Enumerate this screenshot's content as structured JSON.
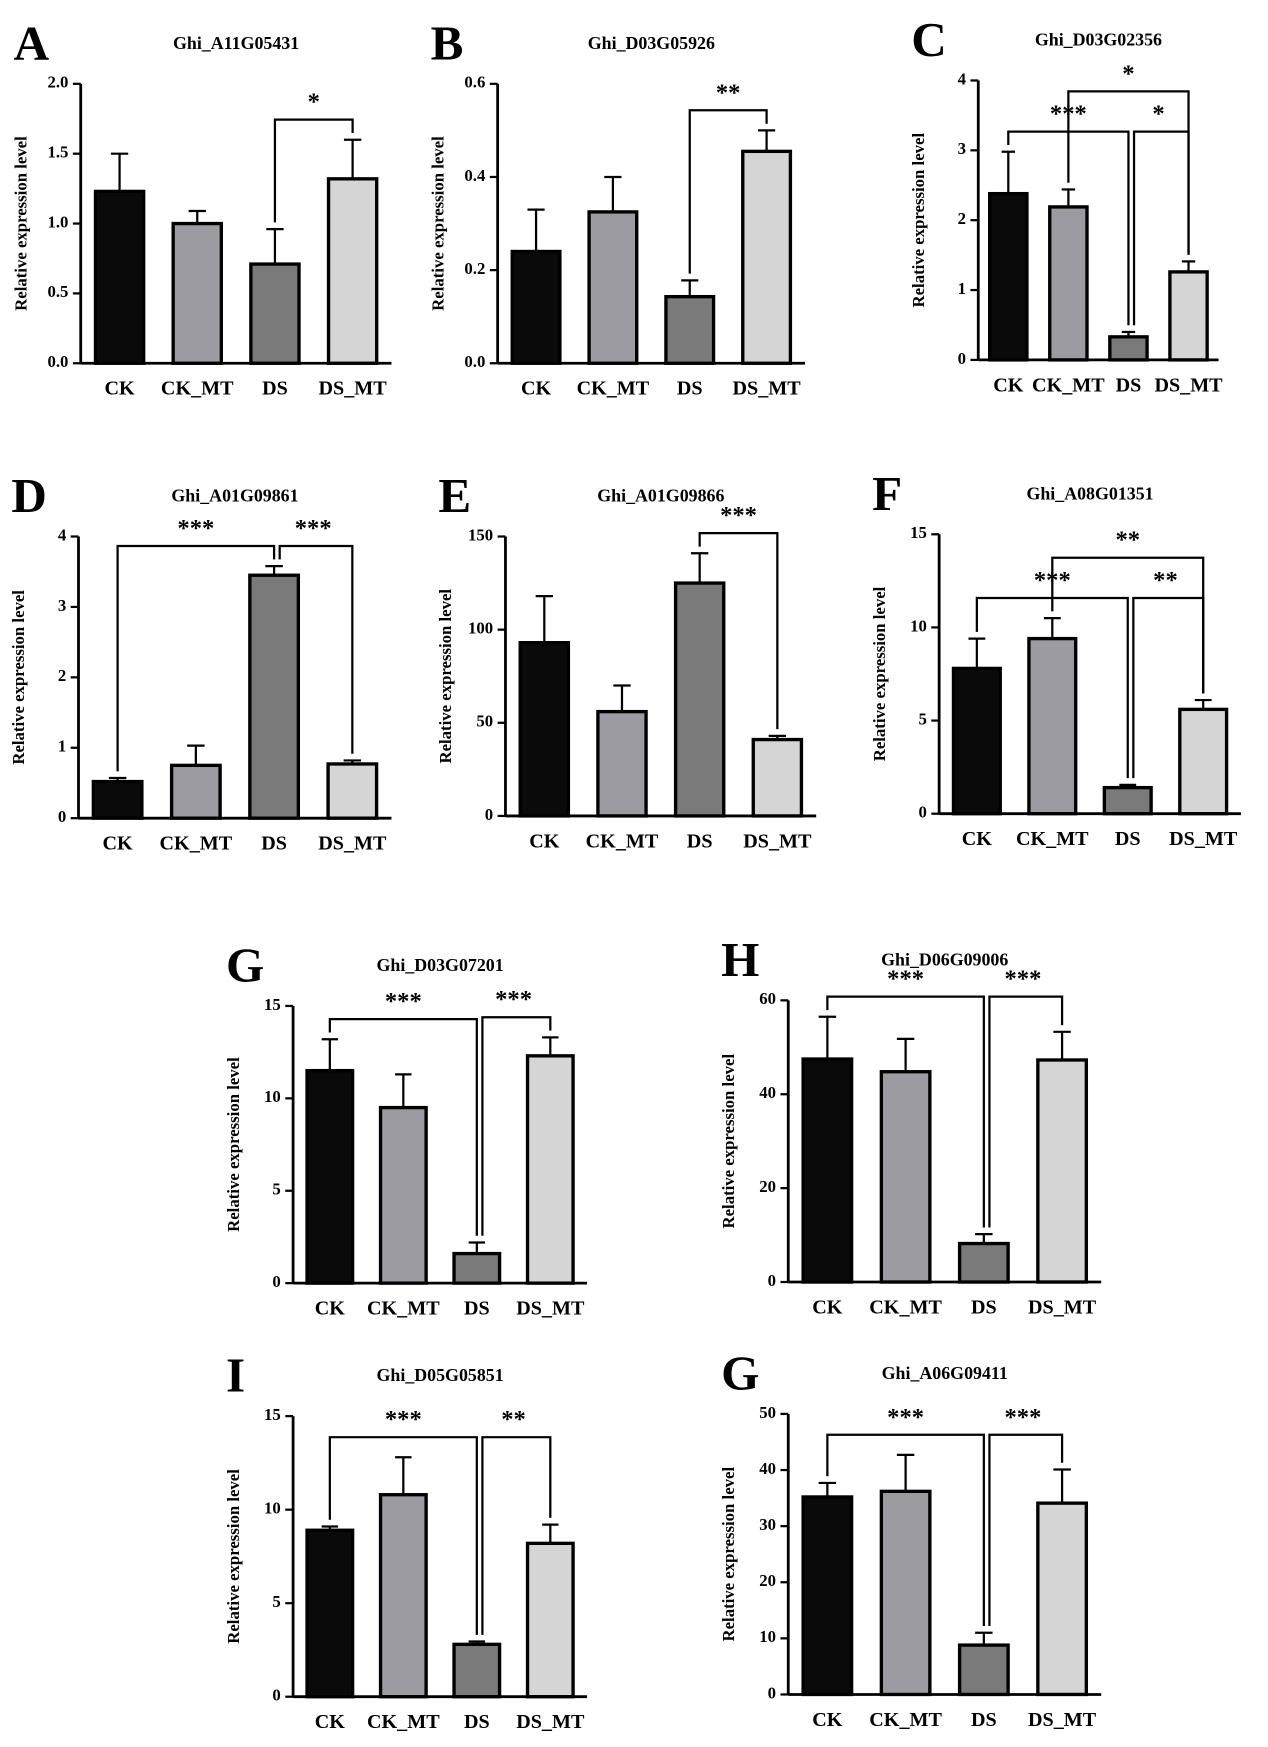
{
  "chart_data": [
    {
      "type": "bar",
      "panel": "A",
      "title": "Ghi_A11G05431",
      "ylabel": "Relative expression level",
      "categories": [
        "CK",
        "CK_MT",
        "DS",
        "DS_MT"
      ],
      "values": [
        1.23,
        1.0,
        0.71,
        1.32
      ],
      "errors": [
        0.27,
        0.09,
        0.25,
        0.28
      ],
      "colors": [
        "#0a0a0a",
        "#9b9ba1",
        "#7a7a7a",
        "#d4d5d4"
      ],
      "ylim": [
        0,
        2
      ],
      "yticks": [
        {
          "value": 0,
          "label": "0.0"
        },
        0.5,
        {
          "value": 1,
          "label": "1.0"
        },
        1.5,
        {
          "value": 2,
          "label": "2.0"
        }
      ],
      "annotations": [
        {
          "pair": [
            "DS",
            "DS_MT"
          ],
          "label": "*"
        }
      ]
    },
    {
      "type": "bar",
      "panel": "B",
      "title": "Ghi_D03G05926",
      "ylabel": "Relative expression level",
      "categories": [
        "CK",
        "CK_MT",
        "DS",
        "DS_MT"
      ],
      "values": [
        0.24,
        0.325,
        0.143,
        0.455
      ],
      "errors": [
        0.09,
        0.075,
        0.035,
        0.045
      ],
      "colors": [
        "#0a0a0a",
        "#9b9ba1",
        "#7a7a7a",
        "#d4d5d4"
      ],
      "ylim": [
        0,
        0.6
      ],
      "yticks": [
        {
          "value": 0,
          "label": "0.0"
        },
        0.2,
        0.4,
        0.6
      ],
      "annotations": [
        {
          "pair": [
            "DS",
            "DS_MT"
          ],
          "label": "**"
        }
      ]
    },
    {
      "type": "bar",
      "panel": "C",
      "title": "Ghi_D03G02356",
      "ylabel": "Relative expression level",
      "categories": [
        "CK",
        "CK_MT",
        "DS",
        "DS_MT"
      ],
      "values": [
        2.38,
        2.19,
        0.33,
        1.26
      ],
      "errors": [
        0.6,
        0.25,
        0.07,
        0.15
      ],
      "colors": [
        "#0a0a0a",
        "#9b9ba1",
        "#7a7a7a",
        "#d4d5d4"
      ],
      "ylim": [
        0,
        4
      ],
      "yticks": [
        0,
        1,
        2,
        3,
        4
      ],
      "annotations": [
        {
          "pair": [
            "CK",
            "DS"
          ],
          "label": "***"
        },
        {
          "pair": [
            "DS",
            "DS_MT"
          ],
          "label": "*"
        },
        {
          "pair": [
            "CK_MT",
            "DS_MT"
          ],
          "label": "*"
        }
      ]
    },
    {
      "type": "bar",
      "panel": "D",
      "title": "Ghi_A01G09861",
      "ylabel": "Relative expression level",
      "categories": [
        "CK",
        "CK_MT",
        "DS",
        "DS_MT"
      ],
      "values": [
        0.52,
        0.75,
        3.45,
        0.77
      ],
      "errors": [
        0.05,
        0.28,
        0.13,
        0.05
      ],
      "colors": [
        "#0a0a0a",
        "#9b9ba1",
        "#7a7a7a",
        "#d4d5d4"
      ],
      "ylim": [
        0,
        4
      ],
      "yticks": [
        0,
        1,
        2,
        3,
        4
      ],
      "annotations": [
        {
          "pair": [
            "CK",
            "DS"
          ],
          "label": "***"
        },
        {
          "pair": [
            "DS",
            "DS_MT"
          ],
          "label": "***"
        }
      ]
    },
    {
      "type": "bar",
      "panel": "E",
      "title": "Ghi_A01G09866",
      "ylabel": "Relative expression level",
      "categories": [
        "CK",
        "CK_MT",
        "DS",
        "DS_MT"
      ],
      "values": [
        93,
        56,
        125,
        41
      ],
      "errors": [
        25,
        14,
        16,
        2
      ],
      "colors": [
        "#0a0a0a",
        "#9b9ba1",
        "#7a7a7a",
        "#d4d5d4"
      ],
      "ylim": [
        0,
        150
      ],
      "yticks": [
        0,
        50,
        100,
        150
      ],
      "annotations": [
        {
          "pair": [
            "DS",
            "DS_MT"
          ],
          "label": "***"
        }
      ]
    },
    {
      "type": "bar",
      "panel": "F",
      "title": "Ghi_A08G01351",
      "ylabel": "Relative expression level",
      "categories": [
        "CK",
        "CK_MT",
        "DS",
        "DS_MT"
      ],
      "values": [
        7.8,
        9.4,
        1.4,
        5.6
      ],
      "errors": [
        1.6,
        1.1,
        0.15,
        0.5
      ],
      "colors": [
        "#0a0a0a",
        "#9b9ba1",
        "#7a7a7a",
        "#d4d5d4"
      ],
      "ylim": [
        0,
        15
      ],
      "yticks": [
        0,
        5,
        10,
        15
      ],
      "annotations": [
        {
          "pair": [
            "CK",
            "DS"
          ],
          "label": "***"
        },
        {
          "pair": [
            "DS",
            "DS_MT"
          ],
          "label": "**"
        },
        {
          "pair": [
            "CK_MT",
            "DS_MT"
          ],
          "label": "**"
        }
      ]
    },
    {
      "type": "bar",
      "panel": "G",
      "title": "Ghi_D03G07201",
      "ylabel": "Relative expression level",
      "categories": [
        "CK",
        "CK_MT",
        "DS",
        "DS_MT"
      ],
      "values": [
        11.5,
        9.5,
        1.6,
        12.3
      ],
      "errors": [
        1.7,
        1.8,
        0.6,
        1.0
      ],
      "colors": [
        "#0a0a0a",
        "#9b9ba1",
        "#7a7a7a",
        "#d4d5d4"
      ],
      "ylim": [
        0,
        15
      ],
      "yticks": [
        0,
        5,
        10,
        15
      ],
      "annotations": [
        {
          "pair": [
            "CK",
            "DS"
          ],
          "label": "***"
        },
        {
          "pair": [
            "DS",
            "DS_MT"
          ],
          "label": "***"
        }
      ]
    },
    {
      "type": "bar",
      "panel": "H",
      "title": "Ghi_D06G09006",
      "ylabel": "Relative expression level",
      "categories": [
        "CK",
        "CK_MT",
        "DS",
        "DS_MT"
      ],
      "values": [
        47.5,
        44.8,
        8.2,
        47.3
      ],
      "errors": [
        9,
        7,
        2,
        6
      ],
      "colors": [
        "#0a0a0a",
        "#9b9ba1",
        "#7a7a7a",
        "#d4d5d4"
      ],
      "ylim": [
        0,
        60
      ],
      "yticks": [
        0,
        20,
        40,
        60
      ],
      "annotations": [
        {
          "pair": [
            "CK",
            "DS"
          ],
          "label": "***"
        },
        {
          "pair": [
            "DS",
            "DS_MT"
          ],
          "label": "***"
        }
      ]
    },
    {
      "type": "bar",
      "panel": "I",
      "title": "Ghi_D05G05851",
      "ylabel": "Relative expression level",
      "categories": [
        "CK",
        "CK_MT",
        "DS",
        "DS_MT"
      ],
      "values": [
        8.9,
        10.8,
        2.8,
        8.2
      ],
      "errors": [
        0.2,
        2.0,
        0.15,
        1.0
      ],
      "colors": [
        "#0a0a0a",
        "#9b9ba1",
        "#7a7a7a",
        "#d4d5d4"
      ],
      "ylim": [
        0,
        15
      ],
      "yticks": [
        0,
        5,
        10,
        15
      ],
      "annotations": [
        {
          "pair": [
            "CK",
            "DS"
          ],
          "label": "***"
        },
        {
          "pair": [
            "DS",
            "DS_MT"
          ],
          "label": "**"
        }
      ]
    },
    {
      "type": "bar",
      "panel": "G",
      "title": "Ghi_A06G09411",
      "ylabel": "Relative expression level",
      "categories": [
        "CK",
        "CK_MT",
        "DS",
        "DS_MT"
      ],
      "values": [
        35.2,
        36.2,
        8.8,
        34.1
      ],
      "errors": [
        2.5,
        6.5,
        2.2,
        6.0
      ],
      "colors": [
        "#0a0a0a",
        "#9b9ba1",
        "#7a7a7a",
        "#d4d5d4"
      ],
      "ylim": [
        0,
        50
      ],
      "yticks": [
        0,
        10,
        20,
        30,
        40,
        50
      ],
      "annotations": [
        {
          "pair": [
            "CK",
            "DS"
          ],
          "label": "***"
        },
        {
          "pair": [
            "DS",
            "DS_MT"
          ],
          "label": "***"
        }
      ]
    }
  ]
}
